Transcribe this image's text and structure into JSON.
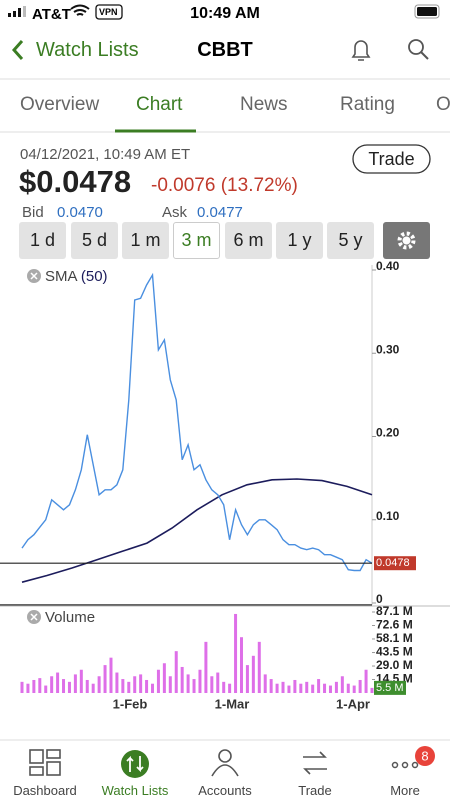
{
  "status": {
    "carrier": "AT&T",
    "vpn": "VPN",
    "time": "10:49 AM"
  },
  "nav": {
    "back": "Watch Lists",
    "title": "CBBT"
  },
  "tabs": {
    "items": [
      "Overview",
      "Chart",
      "News",
      "Rating",
      "O"
    ],
    "active": 1
  },
  "quote": {
    "datetime": "04/12/2021, 10:49 AM ET",
    "price": "$0.0478",
    "change": "-0.0076",
    "change_pct": "(13.72%)",
    "trade": "Trade",
    "bid_label": "Bid",
    "bid": "0.0470",
    "ask_label": "Ask",
    "ask": "0.0477"
  },
  "ranges": {
    "items": [
      "1 d",
      "5 d",
      "1 m",
      "3 m",
      "6 m",
      "1 y",
      "5 y"
    ],
    "active": 3
  },
  "chart": {
    "indicator": "SMA",
    "indicator_period": "(50)",
    "ylim": [
      0,
      0.4
    ],
    "yticks": [
      {
        "value": 0.4,
        "label": "0.40"
      },
      {
        "value": 0.3,
        "label": "0.30"
      },
      {
        "value": 0.2,
        "label": "0.20"
      },
      {
        "value": 0.1,
        "label": "0.10"
      },
      0
    ],
    "price_color": "#4a8fe0",
    "sma_color": "#1c1c5c",
    "price": [
      0.066,
      0.076,
      0.082,
      0.091,
      0.1,
      0.124,
      0.118,
      0.112,
      0.118,
      0.136,
      0.16,
      0.202,
      0.166,
      0.13,
      0.136,
      0.136,
      0.142,
      0.16,
      0.244,
      0.364,
      0.366,
      0.382,
      0.394,
      0.304,
      0.316,
      0.268,
      0.244,
      0.172,
      0.19,
      0.16,
      0.166,
      0.148,
      0.136,
      0.13,
      0.118,
      0.076,
      0.112,
      0.094,
      0.082,
      0.094,
      0.1,
      0.1,
      0.094,
      0.088,
      0.076,
      0.07,
      0.07,
      0.066,
      0.064,
      0.066,
      0.064,
      0.058,
      0.058,
      0.055,
      0.052,
      0.04,
      0.039,
      0.039,
      0.052,
      0.0478
    ],
    "sma": [
      0.025,
      0.033,
      0.042,
      0.052,
      0.062,
      0.072,
      0.09,
      0.112,
      0.13,
      0.142,
      0.148,
      0.149,
      0.147,
      0.14,
      0.13
    ],
    "last_price": 0.0478,
    "volume_label": "Volume",
    "volume_color": "#de6fe8",
    "vlim": [
      0,
      87.1
    ],
    "vticks": [
      {
        "value": 87.1,
        "label": "87.1 M"
      },
      {
        "value": 72.6,
        "label": "72.6 M"
      },
      {
        "value": 58.1,
        "label": "58.1 M"
      },
      {
        "value": 43.5,
        "label": "43.5 M"
      },
      {
        "value": 29.0,
        "label": "29.0 M"
      },
      {
        "value": 14.5,
        "label": "14.5 M"
      }
    ],
    "volume": [
      12,
      10,
      14,
      16,
      8,
      18,
      22,
      15,
      12,
      20,
      25,
      14,
      10,
      18,
      30,
      38,
      22,
      15,
      12,
      18,
      20,
      14,
      10,
      25,
      32,
      18,
      45,
      28,
      20,
      15,
      25,
      55,
      18,
      22,
      12,
      10,
      85,
      60,
      30,
      40,
      55,
      20,
      15,
      10,
      12,
      8,
      14,
      10,
      12,
      9,
      15,
      10,
      8,
      12,
      18,
      10,
      8,
      14,
      25,
      5.5
    ],
    "last_volume": {
      "value": 5.5,
      "label": "5.5 M"
    },
    "xlabels": [
      "1-Feb",
      "1-Mar",
      "1-Apr"
    ]
  },
  "bottom_nav": {
    "items": [
      "Dashboard",
      "Watch Lists",
      "Accounts",
      "Trade",
      "More"
    ],
    "active": 1,
    "badge": "8"
  }
}
